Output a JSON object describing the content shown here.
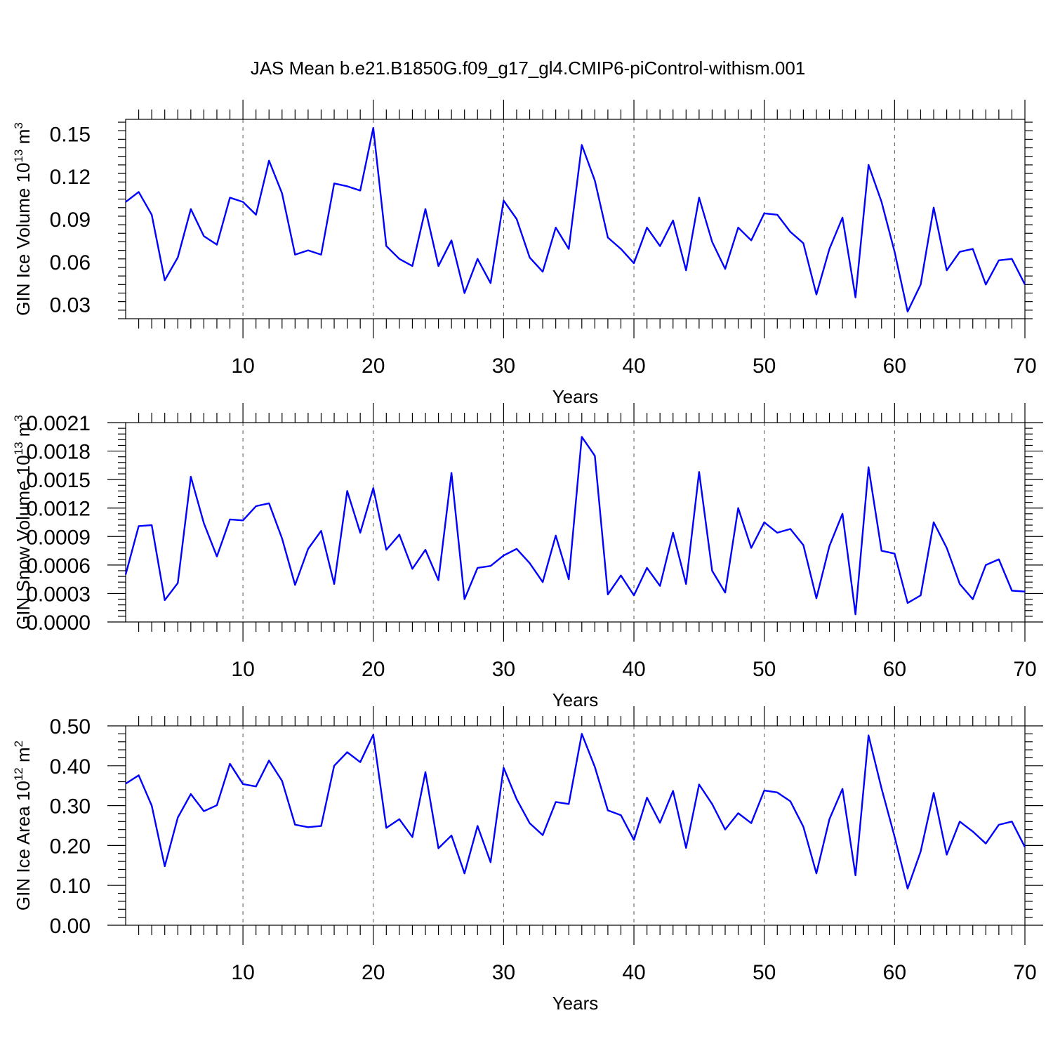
{
  "title": "JAS Mean b.e21.B1850G.f09_g17_gl4.CMIP6-piControl-withism.001",
  "colors": {
    "line": "#0000ff",
    "axis": "#000000",
    "grid": "#555555"
  },
  "chart_data": [
    {
      "type": "line",
      "xlabel": "Years",
      "ylabel_parts": [
        "GIN Ice Volume 10",
        "13",
        " m",
        "3"
      ],
      "xlim": [
        1,
        70
      ],
      "ylim": [
        0.02,
        0.16
      ],
      "x_ticks": [
        10,
        20,
        30,
        40,
        50,
        60,
        70
      ],
      "y_ticks": [
        "0.03",
        "0.06",
        "0.09",
        "0.12",
        "0.15"
      ],
      "grid": "vertical dashed at major x ticks",
      "series": [
        {
          "name": "Ice Volume",
          "values": [
            0.102,
            0.109,
            0.093,
            0.047,
            0.063,
            0.097,
            0.078,
            0.072,
            0.105,
            0.102,
            0.093,
            0.131,
            0.108,
            0.065,
            0.068,
            0.065,
            0.115,
            0.113,
            0.11,
            0.154,
            0.071,
            0.062,
            0.057,
            0.097,
            0.057,
            0.075,
            0.038,
            0.062,
            0.045,
            0.103,
            0.09,
            0.063,
            0.053,
            0.084,
            0.069,
            0.142,
            0.117,
            0.077,
            0.069,
            0.059,
            0.084,
            0.071,
            0.089,
            0.054,
            0.105,
            0.074,
            0.055,
            0.084,
            0.075,
            0.094,
            0.093,
            0.081,
            0.073,
            0.037,
            0.069,
            0.091,
            0.035,
            0.128,
            0.102,
            0.067,
            0.025,
            0.044,
            0.098,
            0.054,
            0.067,
            0.069,
            0.044,
            0.061,
            0.062,
            0.044
          ]
        }
      ]
    },
    {
      "type": "line",
      "xlabel": "Years",
      "ylabel_parts": [
        "GIN Snow Volume 10",
        "13",
        " m",
        "3"
      ],
      "xlim": [
        1,
        70
      ],
      "ylim": [
        0.0,
        0.0021
      ],
      "x_ticks": [
        10,
        20,
        30,
        40,
        50,
        60,
        70
      ],
      "y_ticks": [
        "0.0000",
        "0.0003",
        "0.0006",
        "0.0009",
        "0.0012",
        "0.0015",
        "0.0018",
        "0.0021"
      ],
      "grid": "vertical dashed at major x ticks",
      "series": [
        {
          "name": "Snow Volume",
          "values": [
            0.0005,
            0.00101,
            0.00102,
            0.00023,
            0.00041,
            0.00153,
            0.00104,
            0.00069,
            0.00108,
            0.00107,
            0.00122,
            0.00125,
            0.00088,
            0.00039,
            0.00077,
            0.00096,
            0.0004,
            0.00138,
            0.00094,
            0.00141,
            0.00076,
            0.00092,
            0.00056,
            0.00076,
            0.00044,
            0.00157,
            0.00024,
            0.00057,
            0.00059,
            0.0007,
            0.00077,
            0.00062,
            0.00042,
            0.00091,
            0.00045,
            0.00195,
            0.00175,
            0.00029,
            0.00049,
            0.00028,
            0.00057,
            0.00038,
            0.00094,
            0.0004,
            0.00158,
            0.00054,
            0.00031,
            0.0012,
            0.00078,
            0.00105,
            0.00094,
            0.00098,
            0.00081,
            0.00025,
            0.0008,
            0.00114,
            8e-05,
            0.00163,
            0.00075,
            0.00072,
            0.0002,
            0.00028,
            0.00105,
            0.00078,
            0.0004,
            0.00024,
            0.0006,
            0.00066,
            0.00033,
            0.00032
          ]
        }
      ]
    },
    {
      "type": "line",
      "xlabel": "Years",
      "ylabel_parts": [
        "GIN Ice Area 10",
        "12",
        " m",
        "2"
      ],
      "xlim": [
        1,
        70
      ],
      "ylim": [
        0.0,
        0.5
      ],
      "x_ticks": [
        10,
        20,
        30,
        40,
        50,
        60,
        70
      ],
      "y_ticks": [
        "0.00",
        "0.10",
        "0.20",
        "0.30",
        "0.40",
        "0.50"
      ],
      "grid": "vertical dashed at major x ticks",
      "series": [
        {
          "name": "Ice Area",
          "values": [
            0.355,
            0.376,
            0.3,
            0.148,
            0.27,
            0.329,
            0.286,
            0.301,
            0.405,
            0.354,
            0.348,
            0.413,
            0.362,
            0.252,
            0.246,
            0.249,
            0.4,
            0.434,
            0.409,
            0.478,
            0.244,
            0.266,
            0.221,
            0.384,
            0.193,
            0.225,
            0.13,
            0.249,
            0.158,
            0.395,
            0.316,
            0.256,
            0.226,
            0.309,
            0.304,
            0.48,
            0.397,
            0.288,
            0.276,
            0.214,
            0.32,
            0.257,
            0.337,
            0.194,
            0.353,
            0.304,
            0.24,
            0.281,
            0.256,
            0.338,
            0.333,
            0.311,
            0.247,
            0.13,
            0.266,
            0.342,
            0.125,
            0.476,
            0.343,
            0.222,
            0.092,
            0.185,
            0.332,
            0.177,
            0.26,
            0.235,
            0.205,
            0.252,
            0.26,
            0.196
          ]
        }
      ]
    }
  ]
}
